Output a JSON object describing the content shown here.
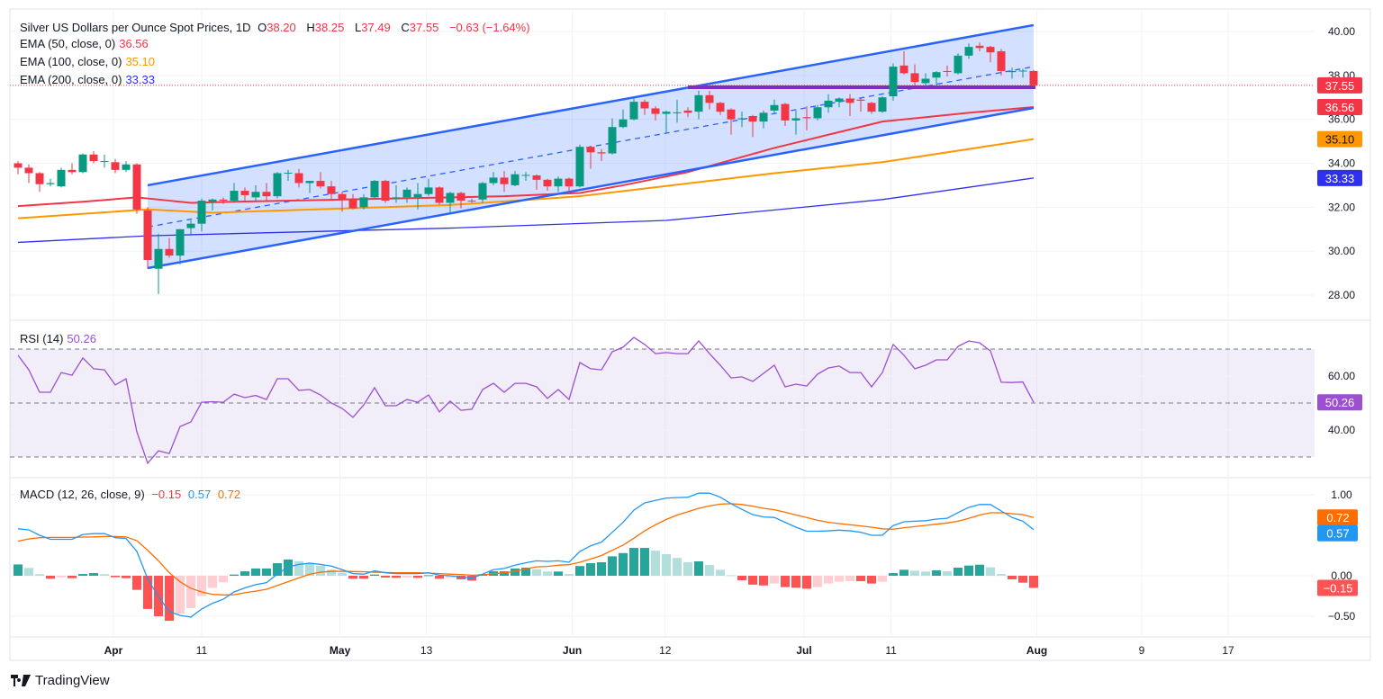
{
  "header": {
    "symbol_title": "Silver US Dollars per Ounce Spot Prices, 1D",
    "open_label": "O",
    "open": "38.20",
    "high_label": "H",
    "high": "38.25",
    "low_label": "L",
    "low": "37.49",
    "close_label": "C",
    "close": "37.55",
    "change": "−0.63 (−1.64%)"
  },
  "indicators": {
    "ema50": {
      "label": "EMA (50, close, 0)",
      "value": "36.56",
      "color": "#f23645"
    },
    "ema100": {
      "label": "EMA (100, close, 0)",
      "value": "35.10",
      "color": "#ff9800"
    },
    "ema200": {
      "label": "EMA (200, close, 0)",
      "value": "33.33",
      "color": "#2f2ff0"
    },
    "rsi": {
      "label": "RSI (14)",
      "value": "50.26",
      "color": "#9c4fd0"
    },
    "macd": {
      "label": "MACD (12, 26, close, 9)",
      "hist": "−0.15",
      "macd": "0.57",
      "signal": "0.72",
      "macd_color": "#2196f3",
      "signal_color": "#ff6d00"
    }
  },
  "brand": "TradingView",
  "colors": {
    "up": "#089981",
    "down": "#f23645",
    "channel": "#2962ff",
    "support": "#7b2fbe"
  },
  "chart_data": {
    "type": "candlestick",
    "title": "Silver US Dollars per Ounce Spot Prices, 1D",
    "ylim": [
      27.3,
      40.5
    ],
    "price_ticks": [
      "40.00",
      "38.00",
      "36.00",
      "34.00",
      "32.00",
      "30.00",
      "28.00"
    ],
    "time_ticks": [
      {
        "label": "Apr",
        "bar": 8.83,
        "bold": true
      },
      {
        "label": "11",
        "bar": 17
      },
      {
        "label": "May",
        "bar": 29.8,
        "bold": true
      },
      {
        "label": "13",
        "bar": 37.8
      },
      {
        "label": "Jun",
        "bar": 51.3,
        "bold": true
      },
      {
        "label": "12",
        "bar": 59.9
      },
      {
        "label": "Jul",
        "bar": 72.75,
        "bold": true
      },
      {
        "label": "11",
        "bar": 80.8
      },
      {
        "label": "Aug",
        "bar": 94.3,
        "bold": true
      },
      {
        "label": "9",
        "bar": 104
      },
      {
        "label": "17",
        "bar": 112
      }
    ],
    "ohlc": [
      [
        34.0,
        34.1,
        33.5,
        33.8
      ],
      [
        33.8,
        33.95,
        33.1,
        33.55
      ],
      [
        33.55,
        33.6,
        32.7,
        33.05
      ],
      [
        33.05,
        33.3,
        32.95,
        33.1
      ],
      [
        32.95,
        33.8,
        32.9,
        33.7
      ],
      [
        33.7,
        34.0,
        33.5,
        33.6
      ],
      [
        33.6,
        34.45,
        33.55,
        34.4
      ],
      [
        34.4,
        34.55,
        34.0,
        34.1
      ],
      [
        34.1,
        34.4,
        33.8,
        34.1
      ],
      [
        34.05,
        34.2,
        33.55,
        33.7
      ],
      [
        33.7,
        34.1,
        33.6,
        33.95
      ],
      [
        33.95,
        34.0,
        31.7,
        31.9
      ],
      [
        31.85,
        32.0,
        29.2,
        29.6
      ],
      [
        29.2,
        30.8,
        28.05,
        30.1
      ],
      [
        30.1,
        30.6,
        29.7,
        29.8
      ],
      [
        29.8,
        31.0,
        29.4,
        31.0
      ],
      [
        31.05,
        31.4,
        30.7,
        31.25
      ],
      [
        31.25,
        32.4,
        30.9,
        32.3
      ],
      [
        32.25,
        32.4,
        31.85,
        32.35
      ],
      [
        32.35,
        32.45,
        32.15,
        32.3
      ],
      [
        32.3,
        33.1,
        32.2,
        32.75
      ],
      [
        32.75,
        32.9,
        32.3,
        32.55
      ],
      [
        32.45,
        33.0,
        32.3,
        32.7
      ],
      [
        32.7,
        33.1,
        32.3,
        32.5
      ],
      [
        32.5,
        33.6,
        32.4,
        33.55
      ],
      [
        33.55,
        33.7,
        33.2,
        33.57
      ],
      [
        33.55,
        33.75,
        32.9,
        33.1
      ],
      [
        33.1,
        33.2,
        32.65,
        33.2
      ],
      [
        33.2,
        33.6,
        32.85,
        32.95
      ],
      [
        32.95,
        33.2,
        32.3,
        32.6
      ],
      [
        32.6,
        32.7,
        31.8,
        32.35
      ],
      [
        32.35,
        32.6,
        31.9,
        31.95
      ],
      [
        32.0,
        32.6,
        31.9,
        32.45
      ],
      [
        32.45,
        33.25,
        32.4,
        33.2
      ],
      [
        33.2,
        33.25,
        32.2,
        32.3
      ],
      [
        32.4,
        33.0,
        32.2,
        32.45
      ],
      [
        32.45,
        32.9,
        32.2,
        32.8
      ],
      [
        32.45,
        33.1,
        31.9,
        32.6
      ],
      [
        32.6,
        33.3,
        32.5,
        32.9
      ],
      [
        32.9,
        32.95,
        32.1,
        32.2
      ],
      [
        32.2,
        32.7,
        31.75,
        32.65
      ],
      [
        32.65,
        32.7,
        31.95,
        32.3
      ],
      [
        32.3,
        32.4,
        32.2,
        32.28
      ],
      [
        32.35,
        33.15,
        32.2,
        33.1
      ],
      [
        33.1,
        33.6,
        33.0,
        33.35
      ],
      [
        33.35,
        33.65,
        32.7,
        33.05
      ],
      [
        33.0,
        33.65,
        32.95,
        33.5
      ],
      [
        33.45,
        33.6,
        33.2,
        33.47
      ],
      [
        33.45,
        33.5,
        32.8,
        33.25
      ],
      [
        33.25,
        33.3,
        32.75,
        32.95
      ],
      [
        32.95,
        33.4,
        32.7,
        33.3
      ],
      [
        33.3,
        33.35,
        32.6,
        32.95
      ],
      [
        32.95,
        34.85,
        32.9,
        34.75
      ],
      [
        34.75,
        34.8,
        33.75,
        34.5
      ],
      [
        34.5,
        34.65,
        34.1,
        34.45
      ],
      [
        34.45,
        36.05,
        34.4,
        35.65
      ],
      [
        35.65,
        36.45,
        35.6,
        36.0
      ],
      [
        36.0,
        36.95,
        35.95,
        36.8
      ],
      [
        36.8,
        36.9,
        36.2,
        36.5
      ],
      [
        36.5,
        36.6,
        35.95,
        36.25
      ],
      [
        36.25,
        36.4,
        35.4,
        36.35
      ],
      [
        36.3,
        36.9,
        35.85,
        36.32
      ],
      [
        36.4,
        36.55,
        36.1,
        36.3
      ],
      [
        36.35,
        37.3,
        36.0,
        37.1
      ],
      [
        37.1,
        37.3,
        36.45,
        36.75
      ],
      [
        36.75,
        36.8,
        36.2,
        36.35
      ],
      [
        36.45,
        36.5,
        35.3,
        36.0
      ],
      [
        36.0,
        36.35,
        35.65,
        36.05
      ],
      [
        36.15,
        36.2,
        35.2,
        35.9
      ],
      [
        35.9,
        36.4,
        35.6,
        36.3
      ],
      [
        36.4,
        36.9,
        36.3,
        36.65
      ],
      [
        36.7,
        36.75,
        35.7,
        35.95
      ],
      [
        35.95,
        36.4,
        35.3,
        36.05
      ],
      [
        36.1,
        36.6,
        35.5,
        36.05
      ],
      [
        36.05,
        36.65,
        35.95,
        36.55
      ],
      [
        36.55,
        37.15,
        36.3,
        36.85
      ],
      [
        36.8,
        37.0,
        36.55,
        36.95
      ],
      [
        36.95,
        37.15,
        36.15,
        36.75
      ],
      [
        36.9,
        36.95,
        36.35,
        36.85
      ],
      [
        36.75,
        36.8,
        36.25,
        36.35
      ],
      [
        36.35,
        37.05,
        36.3,
        37.0
      ],
      [
        37.05,
        38.55,
        36.85,
        38.4
      ],
      [
        38.45,
        39.1,
        38.05,
        38.1
      ],
      [
        38.1,
        38.5,
        37.55,
        37.7
      ],
      [
        37.65,
        38.1,
        37.5,
        37.85
      ],
      [
        37.9,
        38.2,
        37.5,
        38.15
      ],
      [
        38.2,
        38.45,
        37.95,
        38.18
      ],
      [
        38.1,
        39.0,
        38.05,
        38.9
      ],
      [
        38.9,
        39.45,
        38.75,
        39.3
      ],
      [
        39.35,
        39.5,
        39.1,
        39.25
      ],
      [
        39.3,
        39.35,
        38.6,
        39.05
      ],
      [
        39.1,
        39.2,
        38.0,
        38.2
      ],
      [
        38.15,
        38.35,
        37.85,
        38.2
      ],
      [
        38.2,
        38.3,
        37.9,
        38.22
      ],
      [
        38.2,
        38.25,
        37.49,
        37.55
      ]
    ],
    "ema50": [
      [
        0,
        32.05
      ],
      [
        6,
        32.25
      ],
      [
        11,
        32.45
      ],
      [
        13,
        32.35
      ],
      [
        16,
        32.2
      ],
      [
        20,
        32.25
      ],
      [
        30,
        32.35
      ],
      [
        45,
        32.5
      ],
      [
        52,
        32.65
      ],
      [
        56,
        33.0
      ],
      [
        62,
        33.6
      ],
      [
        70,
        34.7
      ],
      [
        75,
        35.3
      ],
      [
        80,
        35.9
      ],
      [
        88,
        36.3
      ],
      [
        94,
        36.56
      ]
    ],
    "ema100": [
      [
        0,
        31.5
      ],
      [
        12,
        31.9
      ],
      [
        18,
        31.75
      ],
      [
        40,
        32.1
      ],
      [
        52,
        32.5
      ],
      [
        70,
        33.55
      ],
      [
        80,
        34.05
      ],
      [
        94,
        35.1
      ]
    ],
    "ema200": [
      [
        0,
        30.4
      ],
      [
        12,
        30.7
      ],
      [
        40,
        31.05
      ],
      [
        60,
        31.4
      ],
      [
        80,
        32.35
      ],
      [
        94,
        33.33
      ]
    ],
    "channel": {
      "upper": [
        [
          12,
          33.0
        ],
        [
          94,
          40.29
        ]
      ],
      "lower": [
        [
          12,
          29.23
        ],
        [
          94,
          36.52
        ]
      ],
      "mid": [
        [
          12,
          31.1
        ],
        [
          94,
          38.4
        ]
      ]
    },
    "support_level": {
      "price": 37.46,
      "from_bar": 62,
      "to_bar": 94
    },
    "last_price": 37.55,
    "price_tags": [
      {
        "value": "37.55",
        "price": 37.55,
        "color": "#f23645"
      },
      {
        "value": "36.56",
        "price": 36.56,
        "color": "#f23645"
      },
      {
        "value": "35.10",
        "price": 35.1,
        "color": "#ff9800"
      },
      {
        "value": "33.33",
        "price": 33.33,
        "color": "#2f2ff0"
      }
    ],
    "rsi": {
      "ticks": [
        "60.00",
        "40.00"
      ],
      "overbought": 70,
      "oversold": 30,
      "middle": 50,
      "values": [
        67.7,
        62.3,
        54,
        54,
        61.3,
        60.3,
        66.7,
        62.7,
        62.3,
        56.7,
        59,
        39.3,
        27.7,
        32.3,
        31.3,
        41.3,
        43,
        50.3,
        50.5,
        50.3,
        53.3,
        52,
        52.8,
        51.3,
        59,
        59,
        54.7,
        55,
        53,
        50,
        48,
        44.7,
        49.3,
        55.7,
        49,
        49,
        51.3,
        50.3,
        53,
        46.7,
        50.7,
        47.3,
        47.7,
        55,
        57.3,
        54,
        57.3,
        57.3,
        56,
        51.7,
        55,
        51.3,
        65,
        62.7,
        62.3,
        69,
        70.7,
        74.3,
        71.7,
        68.3,
        68.7,
        68.3,
        68.3,
        73,
        68.3,
        64,
        59.3,
        59.7,
        58,
        61,
        64,
        56,
        57,
        56.3,
        60.7,
        63,
        63.7,
        61.3,
        61.3,
        56,
        61.3,
        71.7,
        67.7,
        62.7,
        64,
        66,
        66,
        71,
        73,
        72.3,
        69.3,
        57.7,
        57.6,
        57.8,
        50.26
      ],
      "tag": "50.26"
    },
    "macd": {
      "ticks": [
        "1.00",
        "0.00",
        "−0.50"
      ],
      "macd": [
        0.58,
        0.567,
        0.5,
        0.45,
        0.45,
        0.45,
        0.51,
        0.52,
        0.52,
        0.47,
        0.46,
        0.3,
        -0.037,
        -0.26,
        -0.44,
        -0.49,
        -0.51,
        -0.41,
        -0.34,
        -0.29,
        -0.2,
        -0.15,
        -0.11,
        -0.085,
        0.02,
        0.11,
        0.14,
        0.155,
        0.14,
        0.12,
        0.075,
        0.026,
        0.02,
        0.06,
        0.037,
        0.026,
        0.026,
        0.026,
        0.037,
        0.007,
        0,
        -0.015,
        -0.03,
        0.02,
        0.075,
        0.09,
        0.13,
        0.16,
        0.185,
        0.178,
        0.185,
        0.167,
        0.3,
        0.37,
        0.415,
        0.537,
        0.66,
        0.81,
        0.9,
        0.93,
        0.96,
        0.965,
        0.97,
        1.02,
        1.02,
        0.97,
        0.89,
        0.82,
        0.755,
        0.726,
        0.72,
        0.66,
        0.6,
        0.55,
        0.55,
        0.555,
        0.563,
        0.555,
        0.537,
        0.5,
        0.5,
        0.62,
        0.667,
        0.674,
        0.68,
        0.7,
        0.71,
        0.78,
        0.845,
        0.88,
        0.88,
        0.8,
        0.72,
        0.674,
        0.57
      ],
      "signal": [
        0.426,
        0.455,
        0.47,
        0.474,
        0.474,
        0.474,
        0.478,
        0.48,
        0.485,
        0.485,
        0.48,
        0.433,
        0.315,
        0.185,
        0.037,
        -0.074,
        -0.155,
        -0.2,
        -0.23,
        -0.237,
        -0.235,
        -0.21,
        -0.19,
        -0.167,
        -0.12,
        -0.074,
        -0.026,
        0.02,
        0.044,
        0.055,
        0.055,
        0.052,
        0.05,
        0.044,
        0.04,
        0.037,
        0.037,
        0.037,
        0.033,
        0.026,
        0.02,
        0.015,
        0.007,
        0.01,
        0.026,
        0.037,
        0.055,
        0.085,
        0.11,
        0.115,
        0.13,
        0.137,
        0.167,
        0.207,
        0.25,
        0.315,
        0.378,
        0.463,
        0.555,
        0.63,
        0.696,
        0.75,
        0.79,
        0.833,
        0.863,
        0.885,
        0.89,
        0.88,
        0.86,
        0.833,
        0.815,
        0.785,
        0.75,
        0.72,
        0.685,
        0.66,
        0.644,
        0.63,
        0.615,
        0.6,
        0.58,
        0.575,
        0.593,
        0.607,
        0.622,
        0.637,
        0.652,
        0.674,
        0.71,
        0.75,
        0.778,
        0.778,
        0.767,
        0.755,
        0.72
      ],
      "histogram": [
        0.14,
        0.096,
        0.02,
        -0.037,
        -0.02,
        -0.03,
        0.022,
        0.033,
        0.02,
        -0.018,
        -0.03,
        -0.174,
        -0.41,
        -0.5,
        -0.556,
        -0.47,
        -0.4,
        -0.25,
        -0.15,
        -0.08,
        0.015,
        0.055,
        0.09,
        0.09,
        0.155,
        0.2,
        0.18,
        0.15,
        0.125,
        0.075,
        0.037,
        -0.037,
        -0.037,
        0.015,
        -0.022,
        -0.026,
        -0.022,
        -0.026,
        0.007,
        -0.037,
        -0.026,
        -0.044,
        -0.06,
        0.02,
        0.055,
        0.055,
        0.09,
        0.1,
        0.08,
        0.052,
        0.052,
        0.022,
        0.12,
        0.155,
        0.167,
        0.24,
        0.28,
        0.344,
        0.344,
        0.31,
        0.267,
        0.22,
        0.167,
        0.178,
        0.133,
        0.074,
        0.007,
        -0.056,
        -0.11,
        -0.12,
        -0.096,
        -0.14,
        -0.148,
        -0.16,
        -0.14,
        -0.096,
        -0.074,
        -0.067,
        -0.067,
        -0.096,
        -0.074,
        0.033,
        0.074,
        0.063,
        0.052,
        0.067,
        0.055,
        0.1,
        0.126,
        0.137,
        0.104,
        0.022,
        -0.044,
        -0.085,
        -0.15
      ],
      "tags": [
        {
          "value": "0.72",
          "v": 0.72,
          "color": "#ff6d00"
        },
        {
          "value": "0.57",
          "v": 0.57,
          "color": "#2196f3"
        },
        {
          "value": "−0.15",
          "v": -0.15,
          "color": "#ff5252"
        }
      ]
    }
  }
}
